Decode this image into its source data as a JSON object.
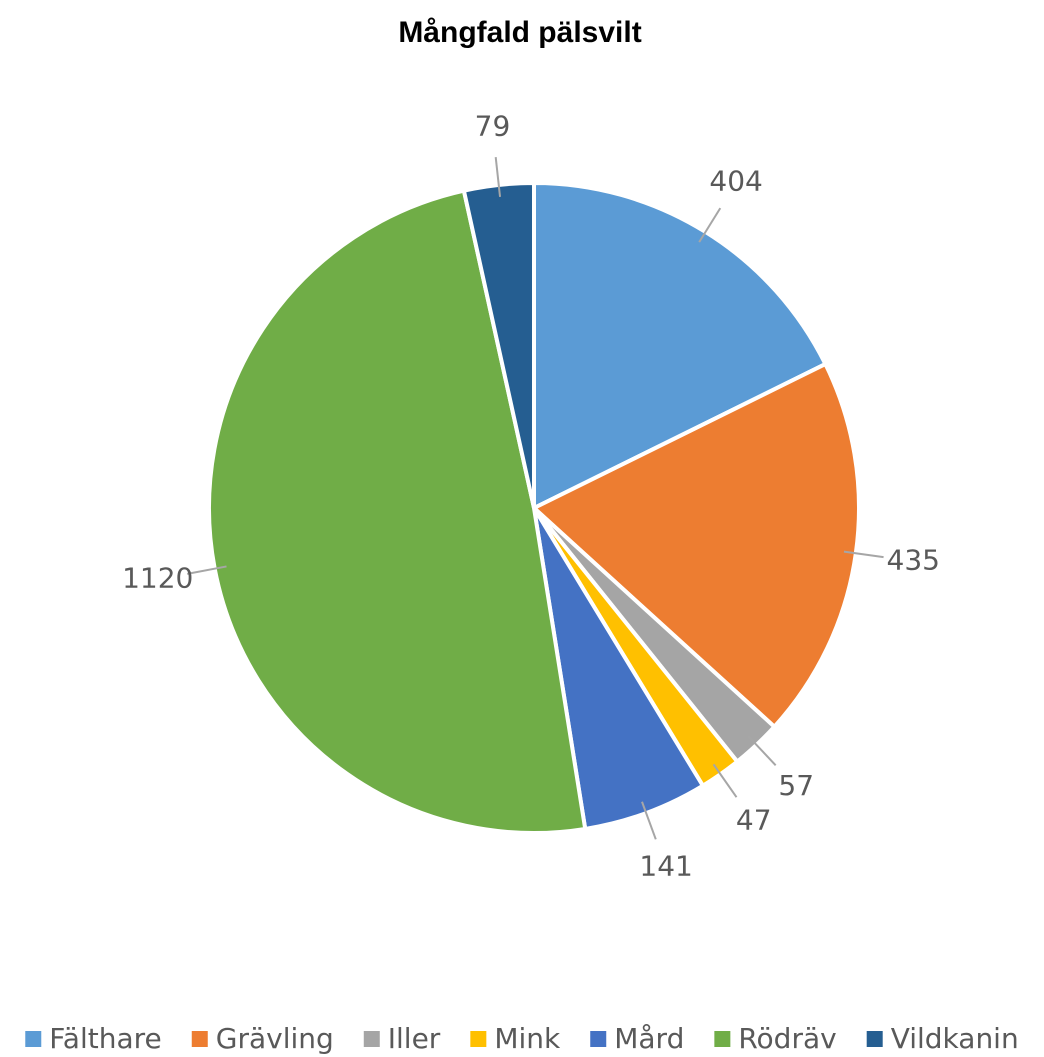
{
  "chart_data": {
    "type": "pie",
    "title": "Mångfald pälsvilt",
    "categories": [
      "Fälthare",
      "Grävling",
      "Iller",
      "Mink",
      "Mård",
      "Rödräv",
      "Vildkanin"
    ],
    "values": [
      404,
      435,
      57,
      47,
      141,
      1120,
      79
    ],
    "colors": [
      "#5b9bd5",
      "#ed7d31",
      "#a5a5a5",
      "#ffc000",
      "#4472c4",
      "#70ad47",
      "#255e91"
    ],
    "legend": "bottom"
  }
}
